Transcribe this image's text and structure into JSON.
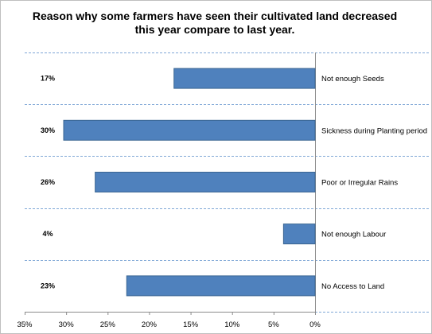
{
  "chart_data": {
    "type": "bar",
    "orientation": "horizontal",
    "x_axis_reversed": true,
    "title": "Reason why some farmers have seen their cultivated land decreased this year compare to last year.",
    "categories": [
      "Not enough Seeds",
      "Sickness during Planting period",
      "Poor or Irregular Rains",
      "Not enough Labour",
      "No Access to Land"
    ],
    "values": [
      17,
      30.3,
      26.5,
      3.8,
      22.7
    ],
    "data_labels": [
      "17%",
      "30%",
      "26%",
      "4%",
      "23%"
    ],
    "xlim": [
      0,
      35
    ],
    "x_ticks": [
      "35%",
      "30%",
      "25%",
      "20%",
      "15%",
      "10%",
      "5%",
      "0%"
    ],
    "grid": "dashed horizontal separators",
    "legend": "none",
    "colors": {
      "bar": "#4f81bd",
      "bar_edge": "#3a6592",
      "grid": "#7fa7d6"
    }
  }
}
